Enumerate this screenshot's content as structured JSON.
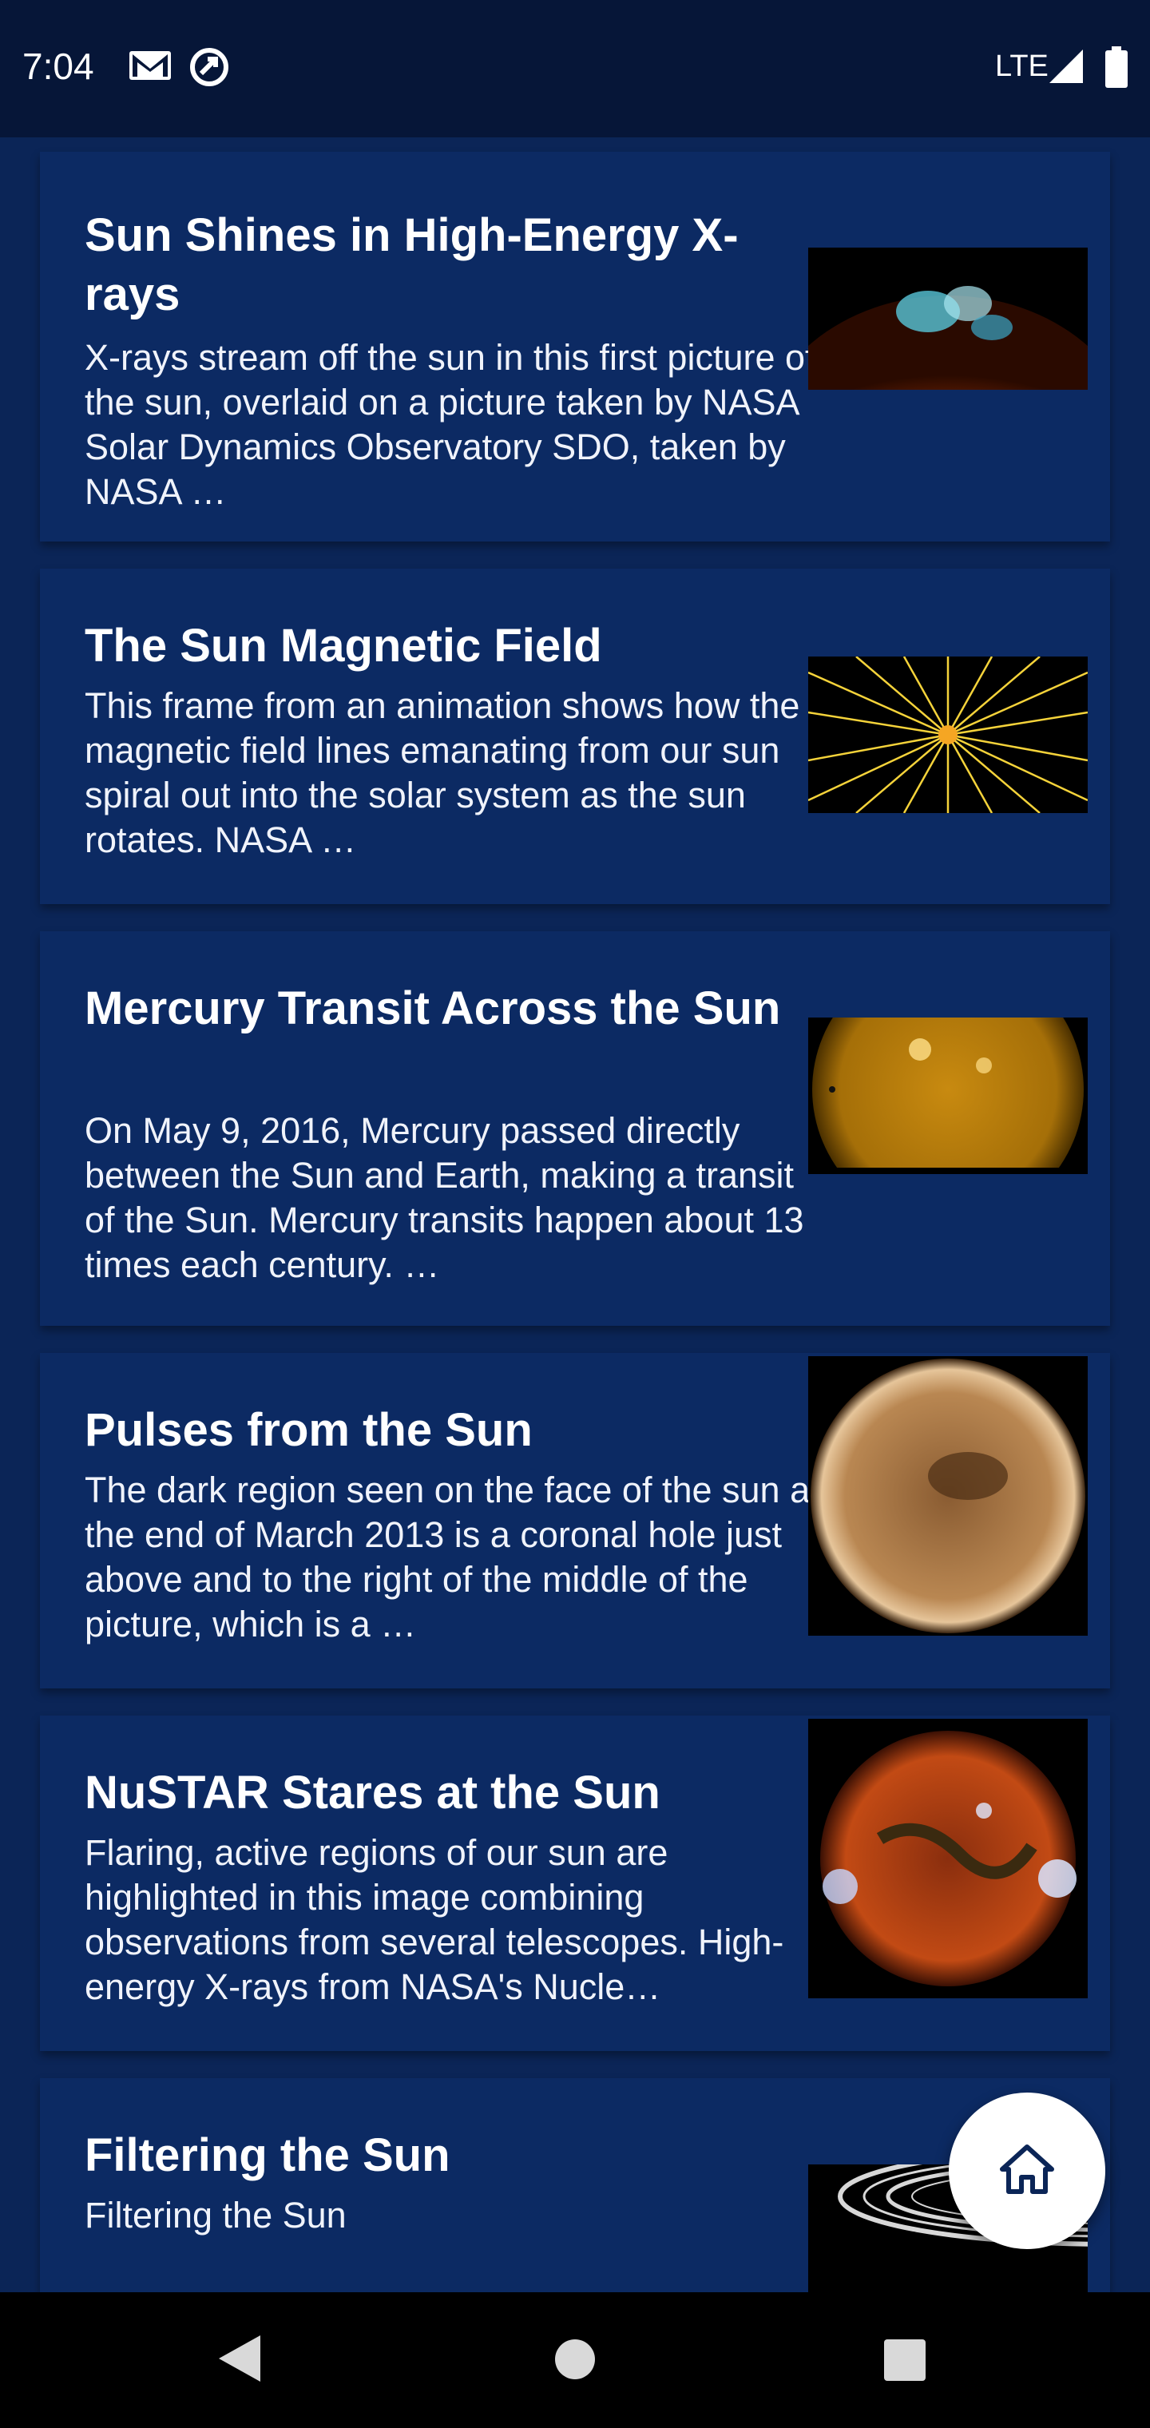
{
  "status_bar": {
    "time": "7:04",
    "network": "LTE",
    "icons": [
      "gmail-icon",
      "sync-icon",
      "signal-icon",
      "battery-icon"
    ]
  },
  "articles": [
    {
      "title": "Sun Shines in High-Energy X-rays",
      "description": "X-rays stream off the sun in this first picture of the sun, overlaid on a picture taken by NASA Solar Dynamics Observatory SDO, taken by NASA …",
      "thumbnail": "sun-x-ray-thumbnail"
    },
    {
      "title": "The Sun Magnetic Field",
      "description": "This frame from an animation shows how the magnetic field lines emanating from our sun spiral out into the solar system as the sun rotates. NASA …",
      "thumbnail": "magnetic-field-thumbnail"
    },
    {
      "title": "Mercury Transit Across the Sun",
      "description": "On May 9, 2016, Mercury passed directly between the Sun and Earth, making a transit of the Sun. Mercury transits happen about 13 times each century. …",
      "thumbnail": "mercury-transit-thumbnail"
    },
    {
      "title": "Pulses from the Sun",
      "description": "The dark region seen on the face of the sun at the end of March 2013 is a coronal hole just above and to the right of the middle of the picture, which is a …",
      "thumbnail": "sun-pulses-thumbnail"
    },
    {
      "title": "NuSTAR Stares at the Sun",
      "description": "Flaring, active regions of our sun are highlighted in this image combining observations from several telescopes. High-energy X-rays from NASA's Nucle…",
      "thumbnail": "nustar-sun-thumbnail"
    },
    {
      "title": "Filtering the Sun",
      "description": "Filtering the Sun",
      "thumbnail": "saturn-rings-thumbnail"
    }
  ],
  "fab": {
    "icon": "home-icon"
  },
  "nav_bar": {
    "icons": [
      "back-icon",
      "home-circle-icon",
      "recents-icon"
    ]
  },
  "colors": {
    "background": "#0b2557",
    "card": "#0c2a63",
    "status_bar": "#061638",
    "fab": "#ffffff",
    "fab_icon": "#0b2557",
    "magnetic_line": "#f5d33a"
  }
}
